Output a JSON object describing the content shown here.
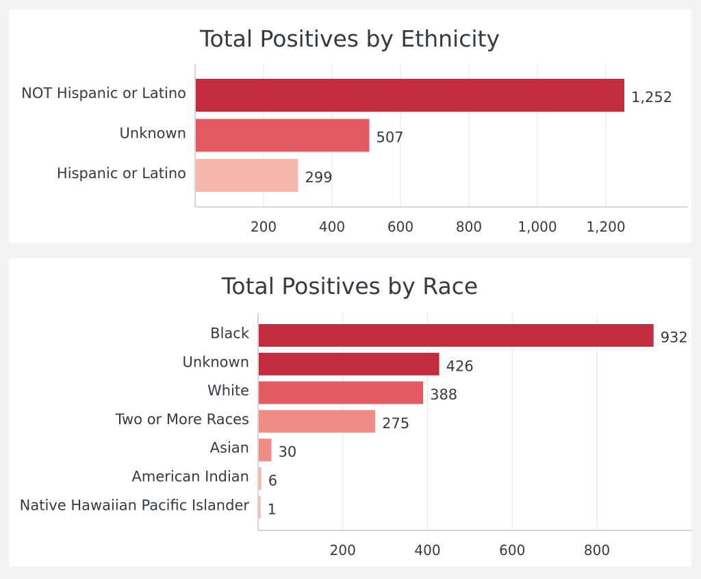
{
  "chart_data": [
    {
      "type": "bar",
      "orientation": "horizontal",
      "title": "Total Positives by Ethnicity",
      "categories": [
        "NOT Hispanic or Latino",
        "Unknown",
        "Hispanic or Latino"
      ],
      "values": [
        1252,
        507,
        299
      ],
      "value_labels": [
        "1,252",
        "507",
        "299"
      ],
      "colors": [
        "#c42b41",
        "#e35b61",
        "#f6b8ae"
      ],
      "xticks": [
        200,
        400,
        600,
        800,
        1000,
        1200
      ],
      "xtick_labels": [
        "200",
        "400",
        "600",
        "800",
        "1,000",
        "1,200"
      ],
      "xlim": [
        0,
        1440
      ],
      "grid": true,
      "legend": "none"
    },
    {
      "type": "bar",
      "orientation": "horizontal",
      "title": "Total Positives by Race",
      "categories": [
        "Black",
        "Unknown",
        "White",
        "Two or More Races",
        "Asian",
        "American Indian",
        "Native Hawaiian Pacific Islander"
      ],
      "values": [
        932,
        426,
        388,
        275,
        30,
        6,
        1
      ],
      "value_labels": [
        "932",
        "426",
        "388",
        "275",
        "30",
        "6",
        "1"
      ],
      "colors": [
        "#c42b41",
        "#c42b41",
        "#e35b61",
        "#ef8c84",
        "#ef8c84",
        "#f6b8ae",
        "#f6b8ae"
      ],
      "xticks": [
        200,
        400,
        600,
        800
      ],
      "xtick_labels": [
        "200",
        "400",
        "600",
        "800"
      ],
      "xlim": [
        0,
        1023
      ],
      "grid": true,
      "legend": "none"
    }
  ]
}
